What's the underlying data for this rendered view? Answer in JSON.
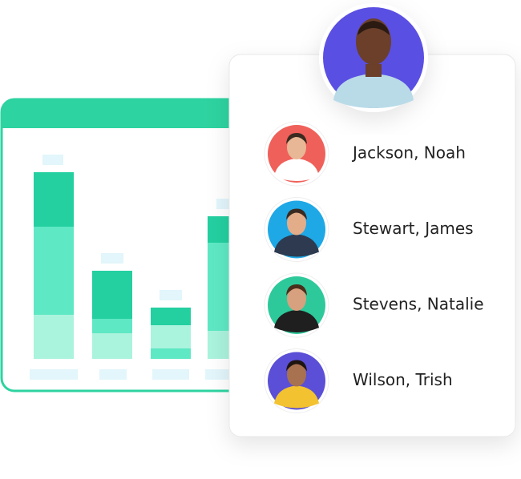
{
  "people": [
    {
      "name": "Jackson, Noah"
    },
    {
      "name": "Stewart, James"
    },
    {
      "name": "Stevens, Natalie"
    },
    {
      "name": "Wilson, Trish"
    }
  ]
}
